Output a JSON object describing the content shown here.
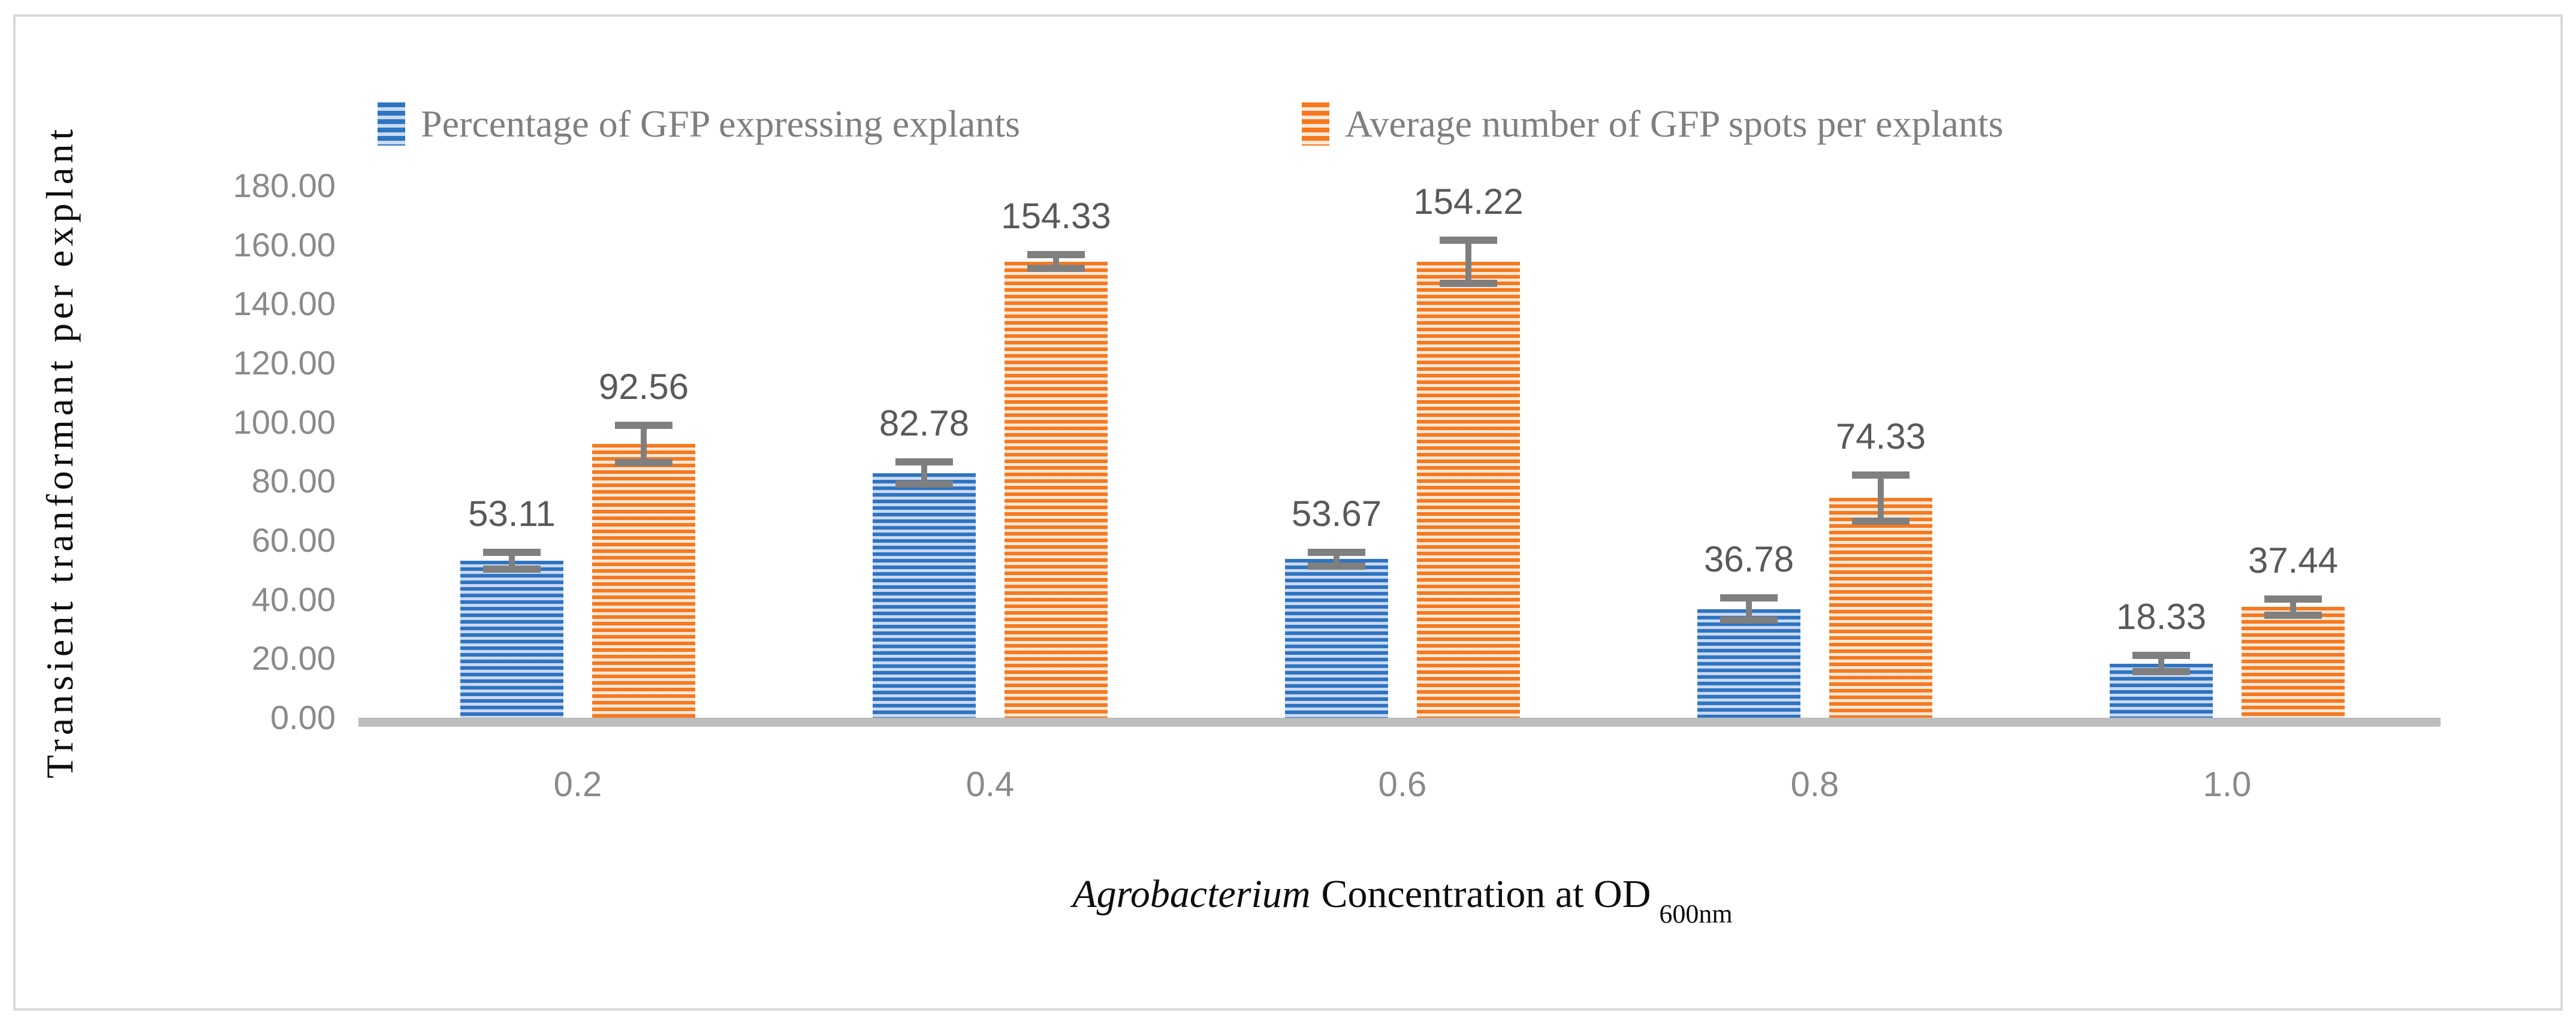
{
  "figure": {
    "border_color": "#D9D9D9",
    "background": "#FFFFFF"
  },
  "legend": {
    "position": "top",
    "items": [
      {
        "label": "Percentage of GFP expressing explants",
        "swatch": "blue-striped"
      },
      {
        "label": "Average number of GFP spots per explants",
        "swatch": "orange-striped"
      }
    ]
  },
  "y_axis": {
    "title": "Transient tranformant per explant",
    "ticks": [
      "180.00",
      "160.00",
      "140.00",
      "120.00",
      "100.00",
      "80.00",
      "60.00",
      "40.00",
      "20.00",
      "0.00"
    ],
    "min": 0,
    "max": 180,
    "step": 20
  },
  "x_axis": {
    "title_italic": "Agrobacterium",
    "title_regular": "Concentration at OD",
    "title_subscript": "600nm",
    "categories": [
      "0.2",
      "0.4",
      "0.6",
      "0.8",
      "1.0"
    ]
  },
  "chart_data": {
    "type": "bar",
    "categories": [
      "0.2",
      "0.4",
      "0.6",
      "0.8",
      "1.0"
    ],
    "series": [
      {
        "name": "Percentage of GFP expressing explants",
        "color": "#2E74C1",
        "pattern_light": "#CBD9F1",
        "values": [
          53.11,
          82.78,
          53.67,
          36.78,
          18.33
        ],
        "data_labels": [
          "53.11",
          "82.78",
          "53.67",
          "36.78",
          "18.33"
        ],
        "error_bars": [
          4,
          5,
          3.5,
          5,
          4
        ]
      },
      {
        "name": "Average number of GFP spots per explants",
        "color": "#F5791F",
        "pattern_light": "#FCE9DB",
        "values": [
          92.56,
          154.33,
          154.22,
          74.33,
          37.44
        ],
        "data_labels": [
          "92.56",
          "154.33",
          "154.22",
          "74.33",
          "37.44"
        ],
        "error_bars": [
          7.5,
          3.5,
          8.5,
          9,
          4
        ]
      }
    ],
    "title": "",
    "xlabel": "Agrobacterium Concentration at OD 600nm",
    "ylabel": "Transient tranformant per explant",
    "ylim": [
      0,
      180
    ],
    "grid": false,
    "legend_position": "top",
    "bar_pattern": "horizontal-stripes",
    "error_bar_color": "#7F7F7F",
    "axis_line_color": "#BDBDBD",
    "tick_label_color": "#8A8A8A",
    "data_label_color": "#595959",
    "legend_text_color": "#7F7F7F",
    "title_text_color": "#0D0D0D"
  }
}
